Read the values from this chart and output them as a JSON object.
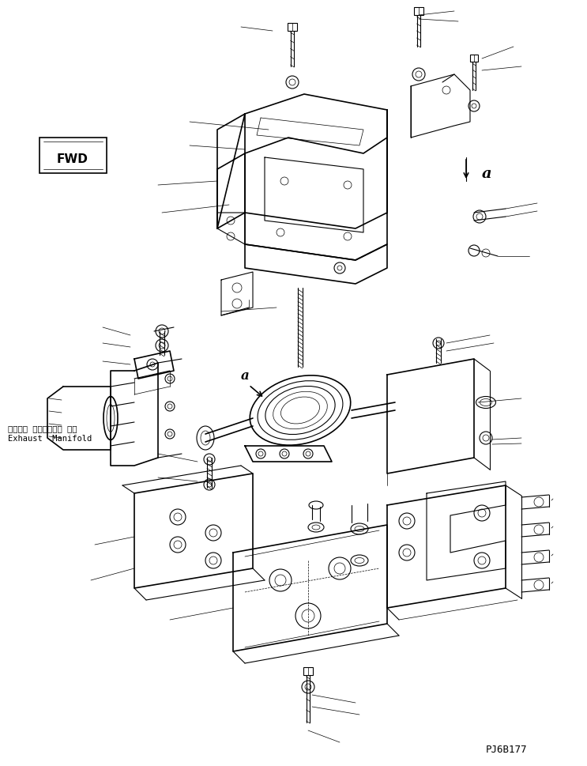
{
  "background_color": "#ffffff",
  "line_color": "#000000",
  "text_color": "#000000",
  "fig_width": 7.43,
  "fig_height": 9.7,
  "dpi": 100,
  "part_code": "PJ6B177",
  "japanese_text": "エキゾー ストマニホー ルド",
  "english_text": "Exhaust  Manifold",
  "fwd_label": "FWD"
}
